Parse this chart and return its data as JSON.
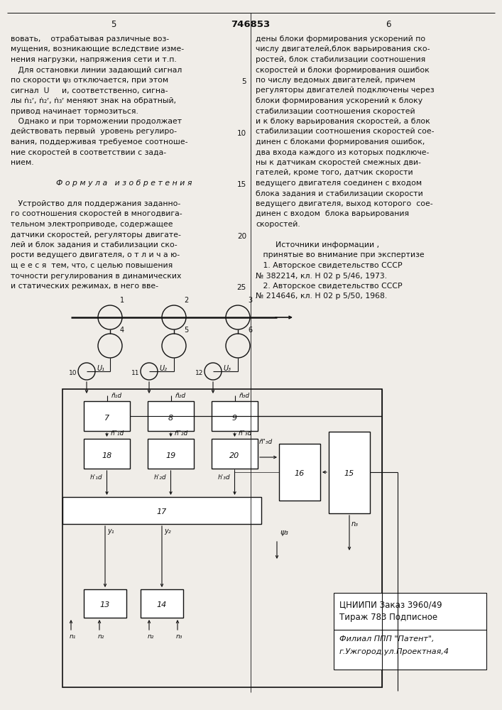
{
  "bg_color": "#f0ede8",
  "text_color": "#111111",
  "line_color": "#111111",
  "left_text_lines": [
    "вовать,    отрабатывая различные воз-",
    "мущения, возникающие вследствие изме-",
    "нения нагрузки, напряжения сети и т.п.",
    "   Для остановки линии задающий сигнал",
    "по скорости ψ₃ отключается, при этом",
    "сигнал  U     и, соответственно, сигна-",
    "лы ṅ₁ʳ, ṅ₂ʳ, ṅ₃ʳ меняют знак на обратный,",
    "привод начинает тормозиться.",
    "   Однако и при торможении продолжает",
    "действовать первый  уровень регулиро-",
    "вания, поддерживая требуемое соотноше-",
    "ние скоростей в соответствии с зада-",
    "нием.",
    "",
    "Ф о р м у л а   и з о б р е т е н и я",
    "",
    "   Устройство для поддержания заданно-",
    "го соотношения скоростей в многодвига-",
    "тельном электроприводе, содержащее",
    "датчики скоростей, регуляторы двигате-",
    "лей и блок задания и стабилизации ско-",
    "рости ведущего двигателя, о т л и ч а ю-",
    "щ е е с я  тем, что, с целью повышения",
    "точности регулирования в динамических",
    "и статических режимах, в него вве-"
  ],
  "right_text_lines": [
    "дены блоки формирования ускорений по",
    "числу двигателей,блок варьирования ско-",
    "ростей, блок стабилизации соотношения",
    "скоростей и блоки формирования ошибок",
    "по числу ведомых двигателей, причем",
    "регуляторы двигателей подключены через",
    "блоки формирования ускорений к блоку",
    "стабилизации соотношения скоростей",
    "и к блоку варьирования скоростей, а блок",
    "стабилизации соотношения скоростей сое-",
    "динен с блоками формирования ошибок,",
    "два входа каждого из которых подключе-",
    "ны к датчикам скоростей смежных дви-",
    "гателей, кроме того, датчик скорости",
    "ведущего двигателя соединен с входом",
    "блока задания и стабилизации скорости",
    "ведущего двигателя, выход которого  сое-",
    "динен с входом  блока варьирования",
    "скоростей.",
    "",
    "        Источники информации ,",
    "   принятые во внимание при экспертизе",
    "   1. Авторское свидетельство СССР",
    "№ 382214, кл. Н 02 р 5/46, 1973.",
    "   2. Авторское свидетельство СССР",
    "№ 214646, кл. Н 02 р 5/50, 1968."
  ],
  "line_numbers_right": [
    5,
    10,
    15,
    20,
    25
  ],
  "line_numbers_right_positions": [
    4,
    9,
    14,
    19,
    24
  ]
}
